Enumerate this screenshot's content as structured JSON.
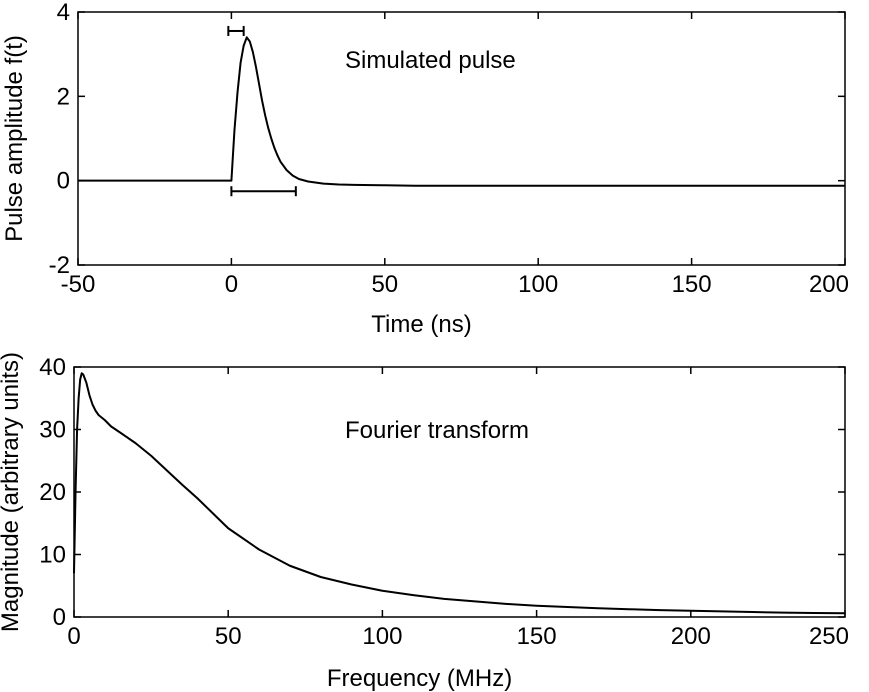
{
  "chart_data": [
    {
      "type": "line",
      "id": "top",
      "title": "",
      "annotation": "Simulated pulse",
      "xlabel": "Time (ns)",
      "ylabel": "Pulse amplitude f(t)",
      "xlim": [
        -50,
        200
      ],
      "ylim": [
        -2,
        4
      ],
      "xticks": [
        -50,
        0,
        50,
        100,
        150,
        200
      ],
      "yticks": [
        -2,
        0,
        2,
        4
      ],
      "grid": false,
      "series": [
        {
          "x": [
            -50,
            -10,
            -1,
            0,
            0.5,
            1,
            2,
            3,
            4,
            5,
            6,
            7,
            8,
            9,
            10,
            11,
            12,
            13,
            14,
            15,
            16,
            18,
            20,
            22,
            25,
            30,
            35,
            40,
            50,
            60,
            80,
            100,
            120,
            140,
            160,
            180,
            200
          ],
          "y": [
            0,
            0,
            0,
            0,
            0.6,
            1.2,
            2.1,
            2.8,
            3.2,
            3.4,
            3.3,
            3.05,
            2.7,
            2.3,
            1.9,
            1.55,
            1.25,
            1.0,
            0.78,
            0.6,
            0.45,
            0.25,
            0.12,
            0.04,
            -0.02,
            -0.07,
            -0.09,
            -0.1,
            -0.11,
            -0.12,
            -0.12,
            -0.12,
            -0.12,
            -0.12,
            -0.12,
            -0.12,
            -0.12
          ]
        }
      ],
      "markers": [
        {
          "kind": "width-bar",
          "x0": 0,
          "x1": 21,
          "y": -0.25
        },
        {
          "kind": "width-bar",
          "x0": -1,
          "x1": 4,
          "y": 3.55
        }
      ]
    },
    {
      "type": "line",
      "id": "bottom",
      "title": "",
      "annotation": "Fourier transform",
      "xlabel": "Frequency (MHz)",
      "ylabel": "Magnitude (arbitrary units)",
      "xlim": [
        0,
        250
      ],
      "ylim": [
        0,
        40
      ],
      "xticks": [
        0,
        50,
        100,
        150,
        200,
        250
      ],
      "yticks": [
        0,
        10,
        20,
        30,
        40
      ],
      "grid": false,
      "series": [
        {
          "x": [
            0,
            0.5,
            1,
            1.5,
            2,
            2.5,
            3,
            4,
            5,
            6,
            7,
            8,
            10,
            12,
            15,
            20,
            25,
            30,
            35,
            40,
            45,
            50,
            60,
            70,
            80,
            90,
            100,
            110,
            120,
            130,
            140,
            150,
            160,
            170,
            180,
            190,
            200,
            210,
            220,
            230,
            240,
            250
          ],
          "y": [
            7,
            20,
            30,
            35,
            38,
            39,
            38.8,
            37.5,
            35.5,
            34,
            33,
            32.3,
            31.5,
            30.5,
            29.5,
            27.8,
            25.8,
            23.5,
            21.2,
            19,
            16.6,
            14.2,
            10.8,
            8.2,
            6.4,
            5.2,
            4.2,
            3.5,
            2.9,
            2.5,
            2.1,
            1.8,
            1.6,
            1.4,
            1.25,
            1.1,
            1.0,
            0.9,
            0.8,
            0.7,
            0.65,
            0.6
          ]
        }
      ],
      "markers": []
    }
  ]
}
